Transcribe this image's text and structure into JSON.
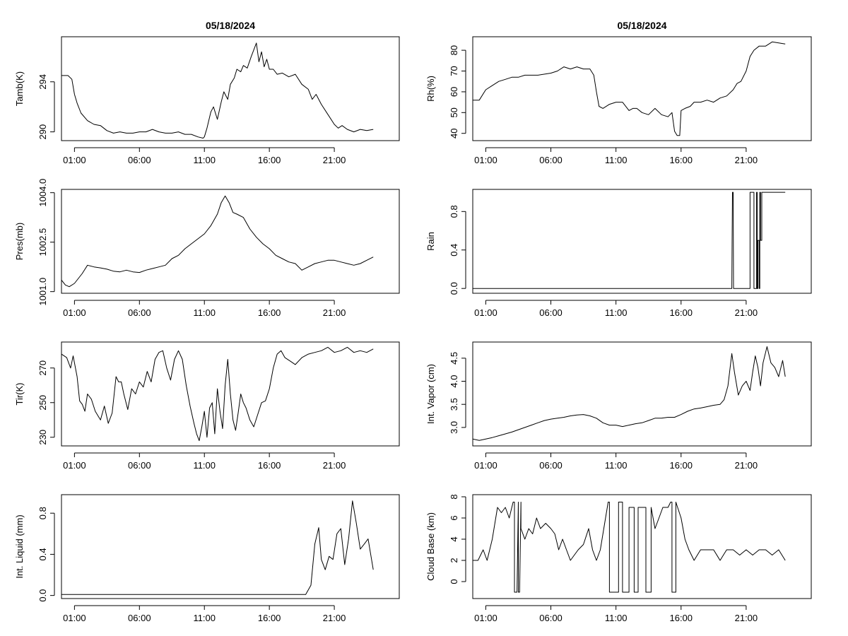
{
  "chart_data": [
    {
      "id": "tamb",
      "type": "line",
      "title": "05/18/2024",
      "ylabel": "Tamb(K)",
      "ylim": [
        289.3,
        297.6
      ],
      "yticks": [
        290,
        294
      ],
      "ytick_labels": [
        "290",
        "294"
      ],
      "xlim": [
        0,
        26
      ],
      "xticks": [
        1,
        6,
        11,
        16,
        21
      ],
      "xtick_labels": [
        "01:00",
        "06:00",
        "11:00",
        "16:00",
        "21:00"
      ],
      "x": [
        0,
        0.5,
        0.8,
        1,
        1.2,
        1.5,
        2,
        2.5,
        3,
        3.5,
        4,
        4.5,
        5,
        5.5,
        6,
        6.5,
        7,
        7.5,
        8,
        8.5,
        9,
        9.5,
        10,
        10.5,
        10.9,
        11,
        11.2,
        11.5,
        11.7,
        12,
        12.3,
        12.5,
        12.8,
        13,
        13.3,
        13.5,
        13.8,
        14,
        14.3,
        14.6,
        15,
        15.2,
        15.4,
        15.6,
        15.8,
        16,
        16.3,
        16.6,
        17,
        17.5,
        18,
        18.5,
        19,
        19.3,
        19.6,
        20,
        20.5,
        21,
        21.3,
        21.6,
        22,
        22.5,
        23,
        23.5,
        24
      ],
      "values": [
        294.5,
        294.5,
        294.2,
        293.0,
        292.3,
        291.5,
        290.9,
        290.6,
        290.5,
        290.1,
        289.9,
        290.0,
        289.9,
        289.9,
        290.0,
        290.0,
        290.2,
        290.0,
        289.9,
        289.9,
        290.0,
        289.8,
        289.8,
        289.6,
        289.5,
        289.6,
        290.3,
        291.6,
        292.0,
        291.0,
        292.4,
        293.2,
        292.6,
        293.8,
        294.3,
        295.0,
        294.8,
        295.3,
        295.1,
        296.0,
        297.1,
        295.6,
        296.4,
        295.2,
        295.8,
        295.0,
        295.0,
        294.6,
        294.7,
        294.4,
        294.6,
        293.8,
        293.4,
        292.6,
        293.0,
        292.2,
        291.4,
        290.6,
        290.3,
        290.5,
        290.2,
        290.0,
        290.2,
        290.1,
        290.2
      ]
    },
    {
      "id": "rh",
      "type": "line",
      "title": "05/18/2024",
      "ylabel": "Rh(%)",
      "ylim": [
        36.5,
        86.5
      ],
      "yticks": [
        40,
        50,
        60,
        70,
        80
      ],
      "ytick_labels": [
        "40",
        "50",
        "60",
        "70",
        "80"
      ],
      "xlim": [
        0,
        26
      ],
      "xticks": [
        1,
        6,
        11,
        16,
        21
      ],
      "xtick_labels": [
        "01:00",
        "06:00",
        "11:00",
        "16:00",
        "21:00"
      ],
      "x": [
        0,
        0.5,
        1,
        1.5,
        2,
        2.5,
        3,
        3.5,
        4,
        5,
        6,
        6.5,
        7,
        7.5,
        8,
        8.5,
        9,
        9.3,
        9.5,
        9.7,
        10,
        10.5,
        11,
        11.5,
        12,
        12.3,
        12.6,
        13,
        13.5,
        14,
        14.5,
        15,
        15.3,
        15.5,
        15.7,
        15.9,
        16,
        16.3,
        16.7,
        17,
        17.5,
        18,
        18.5,
        19,
        19.5,
        20,
        20.3,
        20.6,
        21,
        21.3,
        21.6,
        22,
        22.5,
        23,
        24
      ],
      "values": [
        56,
        56,
        61,
        63,
        65,
        66,
        67,
        67,
        68,
        68,
        69,
        70,
        72,
        71,
        72,
        71,
        71,
        68,
        60,
        53,
        52,
        54,
        55,
        55,
        51,
        52,
        52,
        50,
        49,
        52,
        49,
        48,
        50,
        41,
        39,
        39,
        51,
        52,
        53,
        55,
        55,
        56,
        55,
        57,
        58,
        61,
        64,
        65,
        70,
        77,
        80,
        82,
        82,
        84,
        83
      ]
    },
    {
      "id": "pres",
      "type": "line",
      "ylabel": "Pres(mb)",
      "ylim": [
        1000.95,
        1004.1
      ],
      "yticks": [
        1001.0,
        1002.5,
        1004.0
      ],
      "ytick_labels": [
        "1001.0",
        "1002.5",
        "1004.0"
      ],
      "xlim": [
        0,
        26
      ],
      "xticks": [
        1,
        6,
        11,
        16,
        21
      ],
      "xtick_labels": [
        "01:00",
        "06:00",
        "11:00",
        "16:00",
        "21:00"
      ],
      "x": [
        0,
        0.3,
        0.6,
        1,
        1.3,
        1.6,
        2,
        2.5,
        3,
        3.5,
        4,
        4.5,
        5,
        5.5,
        6,
        6.5,
        7,
        7.5,
        8,
        8.5,
        9,
        9.5,
        10,
        10.5,
        11,
        11.5,
        12,
        12.3,
        12.6,
        12.9,
        13.2,
        13.5,
        14,
        14.5,
        15,
        15.5,
        16,
        16.5,
        17,
        17.5,
        18,
        18.5,
        19,
        19.5,
        20,
        20.5,
        21,
        21.5,
        22,
        22.5,
        23,
        23.5,
        24
      ],
      "values": [
        1001.35,
        1001.2,
        1001.15,
        1001.25,
        1001.4,
        1001.55,
        1001.8,
        1001.75,
        1001.72,
        1001.68,
        1001.62,
        1001.6,
        1001.65,
        1001.6,
        1001.58,
        1001.65,
        1001.7,
        1001.75,
        1001.8,
        1002.0,
        1002.1,
        1002.3,
        1002.45,
        1002.6,
        1002.75,
        1003.0,
        1003.35,
        1003.7,
        1003.9,
        1003.7,
        1003.4,
        1003.35,
        1003.25,
        1002.9,
        1002.65,
        1002.45,
        1002.3,
        1002.1,
        1002.0,
        1001.9,
        1001.85,
        1001.65,
        1001.75,
        1001.85,
        1001.9,
        1001.95,
        1001.95,
        1001.9,
        1001.85,
        1001.8,
        1001.85,
        1001.95,
        1002.05
      ]
    },
    {
      "id": "rain",
      "type": "line",
      "ylabel": "Rain",
      "ylim": [
        -0.05,
        1.03
      ],
      "yticks": [
        0.0,
        0.4,
        0.8
      ],
      "ytick_labels": [
        "0.0",
        "0.4",
        "0.8"
      ],
      "xlim": [
        0,
        26
      ],
      "xticks": [
        1,
        6,
        11,
        16,
        21
      ],
      "xtick_labels": [
        "01:00",
        "06:00",
        "11:00",
        "16:00",
        "21:00"
      ],
      "x": [
        0,
        19.9,
        19.92,
        19.95,
        20.0,
        20.03,
        21.3,
        21.3,
        21.6,
        21.6,
        21.8,
        21.8,
        21.85,
        21.85,
        21.9,
        21.9,
        22.0,
        22.0,
        22.05,
        22.05,
        22.1,
        22.1,
        22.2,
        22.2,
        24
      ],
      "values": [
        0,
        0,
        0.5,
        1,
        1,
        0,
        0,
        1,
        1,
        0,
        0,
        1,
        1,
        0,
        0,
        0.5,
        0.5,
        0,
        0,
        1,
        1,
        0.5,
        0.5,
        1,
        1
      ]
    },
    {
      "id": "tir",
      "type": "line",
      "ylabel": "Tir(K)",
      "ylim": [
        225,
        285
      ],
      "yticks": [
        230,
        250,
        270
      ],
      "ytick_labels": [
        "230",
        "250",
        "270"
      ],
      "xlim": [
        0,
        26
      ],
      "xticks": [
        1,
        6,
        11,
        16,
        21
      ],
      "xtick_labels": [
        "01:00",
        "06:00",
        "11:00",
        "16:00",
        "21:00"
      ],
      "x": [
        0,
        0.4,
        0.7,
        0.9,
        1.2,
        1.4,
        1.6,
        1.8,
        2,
        2.3,
        2.6,
        3,
        3.3,
        3.6,
        3.9,
        4.2,
        4.4,
        4.6,
        4.8,
        5.1,
        5.4,
        5.7,
        6,
        6.3,
        6.6,
        6.9,
        7.2,
        7.5,
        7.8,
        8.1,
        8.4,
        8.7,
        9,
        9.3,
        9.6,
        9.9,
        10.2,
        10.4,
        10.6,
        10.8,
        11,
        11.2,
        11.4,
        11.6,
        11.8,
        12,
        12.2,
        12.4,
        12.6,
        12.8,
        13,
        13.2,
        13.4,
        13.6,
        13.8,
        14,
        14.2,
        14.5,
        14.8,
        15.1,
        15.4,
        15.7,
        16,
        16.3,
        16.6,
        16.9,
        17.2,
        17.6,
        18,
        18.5,
        19,
        19.5,
        20,
        20.5,
        21,
        21.5,
        22,
        22.5,
        23,
        23.5,
        24
      ],
      "values": [
        278,
        276,
        270,
        277,
        265,
        251,
        249,
        245,
        255,
        252,
        245,
        240,
        248,
        238,
        244,
        265,
        262,
        262,
        255,
        246,
        258,
        255,
        262,
        259,
        268,
        262,
        275,
        279,
        280,
        270,
        263,
        275,
        280,
        275,
        260,
        248,
        238,
        232,
        228,
        236,
        245,
        230,
        247,
        250,
        232,
        258,
        245,
        235,
        260,
        275,
        255,
        240,
        234,
        244,
        255,
        250,
        247,
        240,
        236,
        243,
        250,
        251,
        258,
        270,
        278,
        280,
        276,
        274,
        272,
        276,
        278,
        279,
        280,
        282,
        279,
        280,
        282,
        279,
        280,
        279,
        281
      ]
    },
    {
      "id": "vapor",
      "type": "line",
      "ylabel": "Int. Vapor (cm)",
      "ylim": [
        2.6,
        4.85
      ],
      "yticks": [
        3.0,
        3.5,
        4.0,
        4.5
      ],
      "ytick_labels": [
        "3.0",
        "3.5",
        "4.0",
        "4.5"
      ],
      "xlim": [
        0,
        26
      ],
      "xticks": [
        1,
        6,
        11,
        16,
        21
      ],
      "xtick_labels": [
        "01:00",
        "06:00",
        "11:00",
        "16:00",
        "21:00"
      ],
      "x": [
        0,
        0.5,
        1,
        1.5,
        2,
        2.5,
        3,
        3.5,
        4,
        4.5,
        5,
        5.5,
        6,
        6.5,
        7,
        7.5,
        8,
        8.5,
        9,
        9.5,
        10,
        10.5,
        11,
        11.5,
        12,
        12.5,
        13,
        13.5,
        14,
        14.5,
        15,
        15.5,
        16,
        16.5,
        17,
        17.5,
        18,
        18.5,
        19,
        19.3,
        19.6,
        19.9,
        20.1,
        20.4,
        20.7,
        21,
        21.3,
        21.5,
        21.7,
        21.9,
        22.1,
        22.3,
        22.6,
        22.9,
        23.2,
        23.5,
        23.8,
        24
      ],
      "values": [
        2.75,
        2.72,
        2.75,
        2.78,
        2.82,
        2.86,
        2.9,
        2.95,
        3.0,
        3.05,
        3.1,
        3.15,
        3.18,
        3.2,
        3.22,
        3.25,
        3.27,
        3.28,
        3.25,
        3.2,
        3.1,
        3.05,
        3.05,
        3.02,
        3.05,
        3.08,
        3.1,
        3.15,
        3.2,
        3.2,
        3.22,
        3.22,
        3.28,
        3.35,
        3.4,
        3.42,
        3.45,
        3.48,
        3.5,
        3.6,
        3.9,
        4.6,
        4.2,
        3.7,
        3.9,
        4.0,
        3.8,
        4.2,
        4.55,
        4.3,
        3.9,
        4.4,
        4.75,
        4.4,
        4.3,
        4.1,
        4.45,
        4.1
      ]
    },
    {
      "id": "liquid",
      "type": "line",
      "ylabel": "Int. Liquid (mm)",
      "ylim": [
        -0.03,
        0.98
      ],
      "yticks": [
        0.0,
        0.4,
        0.8
      ],
      "ytick_labels": [
        "0.0",
        "0.4",
        "0.8"
      ],
      "xlim": [
        0,
        26
      ],
      "xticks": [
        1,
        6,
        11,
        16,
        21
      ],
      "xtick_labels": [
        "01:00",
        "06:00",
        "11:00",
        "16:00",
        "21:00"
      ],
      "x": [
        0,
        5,
        10,
        15,
        17,
        18,
        18.8,
        19.2,
        19.5,
        19.8,
        20,
        20.3,
        20.6,
        20.9,
        21.2,
        21.5,
        21.8,
        22.1,
        22.4,
        22.7,
        23,
        23.3,
        23.6,
        24
      ],
      "values": [
        0.01,
        0.01,
        0.01,
        0.01,
        0.01,
        0.01,
        0.01,
        0.1,
        0.5,
        0.66,
        0.35,
        0.25,
        0.38,
        0.35,
        0.6,
        0.65,
        0.3,
        0.55,
        0.92,
        0.7,
        0.45,
        0.5,
        0.55,
        0.25
      ]
    },
    {
      "id": "cloud",
      "type": "line",
      "ylabel": "Cloud Base (km)",
      "ylim": [
        -1.6,
        8.2
      ],
      "yticks": [
        0,
        2,
        4,
        6,
        8
      ],
      "ytick_labels": [
        "0",
        "2",
        "4",
        "6",
        "8"
      ],
      "xlim": [
        0,
        26
      ],
      "xticks": [
        1,
        6,
        11,
        16,
        21
      ],
      "xtick_labels": [
        "01:00",
        "06:00",
        "11:00",
        "16:00",
        "21:00"
      ],
      "x": [
        0,
        0.4,
        0.8,
        1.1,
        1.5,
        1.9,
        2.2,
        2.5,
        2.8,
        3.1,
        3.2,
        3.2,
        3.4,
        3.5,
        3.5,
        3.6,
        3.7,
        3.7,
        4.0,
        4.3,
        4.6,
        4.9,
        5.2,
        5.6,
        6,
        6.3,
        6.6,
        6.9,
        7.2,
        7.5,
        7.8,
        8.1,
        8.5,
        8.9,
        9.2,
        9.5,
        9.8,
        10,
        10.2,
        10.4,
        10.5,
        10.5,
        11.2,
        11.2,
        11.5,
        11.5,
        12,
        12.0,
        12.4,
        12.4,
        12.7,
        12.7,
        13.3,
        13.3,
        13.7,
        13.7,
        14.0,
        14.3,
        14.6,
        15,
        15.2,
        15.3,
        15.3,
        15.6,
        15.6,
        16,
        16.3,
        16.6,
        17,
        17.5,
        18,
        18.5,
        19,
        19.5,
        20,
        20.5,
        21,
        21.5,
        22,
        22.5,
        23,
        23.5,
        24
      ],
      "values": [
        2,
        2,
        3,
        2,
        4,
        7,
        6.5,
        7,
        6,
        7.5,
        7.5,
        -1,
        -1,
        7.5,
        -1,
        -1,
        7.5,
        5,
        4,
        5,
        4.5,
        6,
        5,
        5.5,
        5,
        4.5,
        3,
        4,
        3,
        2,
        2.5,
        3,
        3.5,
        5,
        3,
        2,
        3,
        4.5,
        6,
        7.5,
        7.5,
        -1,
        -1,
        7.5,
        7.5,
        -1,
        -1,
        7,
        7,
        -1,
        -1,
        7,
        7,
        -1,
        -1,
        7,
        5,
        6,
        7,
        7,
        7.5,
        7.5,
        -1,
        -1,
        7.5,
        6,
        4,
        3,
        2,
        3,
        3,
        3,
        2,
        3,
        3,
        2.5,
        3,
        2.5,
        3,
        3,
        2.5,
        3,
        2
      ]
    }
  ]
}
